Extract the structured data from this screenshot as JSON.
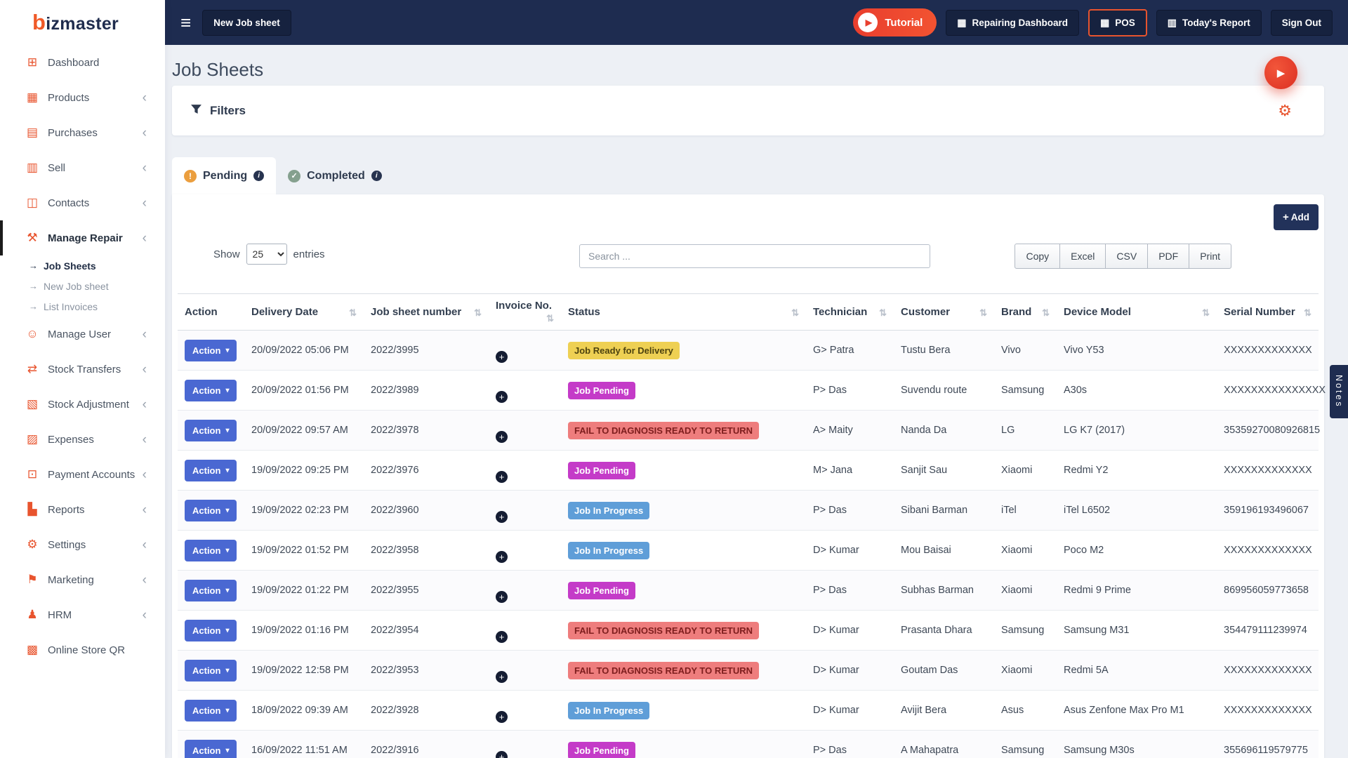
{
  "brand": {
    "name": "bizmaster",
    "accent": "#f05a28"
  },
  "topbar": {
    "hamburger_icon": "menu-icon",
    "new_job_sheet_label": "New Job sheet",
    "buttons": [
      {
        "label": "Tutorial",
        "icon": "play-icon",
        "style": "tutorial"
      },
      {
        "label": "Repairing Dashboard",
        "icon": "grid-icon",
        "style": "navy"
      },
      {
        "label": "POS",
        "icon": "grid-icon",
        "style": "navy-highlight"
      },
      {
        "label": "Today's Report",
        "icon": "report-icon",
        "style": "navy"
      },
      {
        "label": "Sign Out",
        "icon": null,
        "style": "navy"
      }
    ]
  },
  "sidebar": {
    "items": [
      {
        "label": "Dashboard",
        "icon": "dashboard-icon",
        "chevron": false
      },
      {
        "label": "Products",
        "icon": "products-icon",
        "chevron": true
      },
      {
        "label": "Purchases",
        "icon": "purchases-icon",
        "chevron": true
      },
      {
        "label": "Sell",
        "icon": "sell-icon",
        "chevron": true
      },
      {
        "label": "Contacts",
        "icon": "contacts-icon",
        "chevron": true
      },
      {
        "label": "Manage Repair",
        "icon": "repair-icon",
        "chevron": true,
        "active": true,
        "subitems": [
          {
            "label": "Job Sheets",
            "active": true
          },
          {
            "label": "New Job sheet"
          },
          {
            "label": "List Invoices"
          }
        ]
      },
      {
        "label": "Manage User",
        "icon": "users-icon",
        "chevron": true
      },
      {
        "label": "Stock Transfers",
        "icon": "transfers-icon",
        "chevron": true
      },
      {
        "label": "Stock Adjustment",
        "icon": "adjustment-icon",
        "chevron": true
      },
      {
        "label": "Expenses",
        "icon": "expenses-icon",
        "chevron": true
      },
      {
        "label": "Payment Accounts",
        "icon": "payments-icon",
        "chevron": true
      },
      {
        "label": "Reports",
        "icon": "reports-icon",
        "chevron": true
      },
      {
        "label": "Settings",
        "icon": "settings-icon",
        "chevron": true
      },
      {
        "label": "Marketing",
        "icon": "marketing-icon",
        "chevron": true
      },
      {
        "label": "HRM",
        "icon": "hrm-icon",
        "chevron": true
      },
      {
        "label": "Online Store QR",
        "icon": "qr-icon",
        "chevron": false
      }
    ]
  },
  "page": {
    "title": "Job Sheets",
    "filters": {
      "label": "Filters"
    },
    "tabs": [
      {
        "label": "Pending",
        "icon": "alert-icon",
        "active": true
      },
      {
        "label": "Completed",
        "icon": "check-icon",
        "active": false
      }
    ],
    "add_button": "Add"
  },
  "controls": {
    "show_label": "Show",
    "page_size": "25",
    "entries_label": "entries",
    "search_placeholder": "Search ...",
    "export_buttons": [
      "Copy",
      "Excel",
      "CSV",
      "PDF",
      "Print"
    ]
  },
  "table": {
    "action_label": "Action",
    "headers": [
      {
        "label": "Action",
        "sortable": false
      },
      {
        "label": "Delivery Date",
        "sortable": true
      },
      {
        "label": "Job sheet number",
        "sortable": true
      },
      {
        "label": "Invoice No.",
        "sortable": true
      },
      {
        "label": "Status",
        "sortable": true
      },
      {
        "label": "Technician",
        "sortable": true
      },
      {
        "label": "Customer",
        "sortable": true
      },
      {
        "label": "Brand",
        "sortable": true
      },
      {
        "label": "Device Model",
        "sortable": true
      },
      {
        "label": "Serial Number",
        "sortable": true
      }
    ],
    "rows": [
      {
        "delivery_date": "20/09/2022 05:06 PM",
        "job_sheet_number": "2022/3995",
        "status": "Job Ready for Delivery",
        "status_type": "ready",
        "technician": "G> Patra",
        "customer": "Tustu Bera",
        "brand": "Vivo",
        "device_model": "Vivo Y53",
        "serial_number": "XXXXXXXXXXXXX"
      },
      {
        "delivery_date": "20/09/2022 01:56 PM",
        "job_sheet_number": "2022/3989",
        "status": "Job Pending",
        "status_type": "pending",
        "technician": "P> Das",
        "customer": "Suvendu route",
        "brand": "Samsung",
        "device_model": "A30s",
        "serial_number": "XXXXXXXXXXXXXXX"
      },
      {
        "delivery_date": "20/09/2022 09:57 AM",
        "job_sheet_number": "2022/3978",
        "status": "FAIL TO DIAGNOSIS READY TO RETURN",
        "status_type": "fail",
        "technician": "A> Maity",
        "customer": "Nanda Da",
        "brand": "LG",
        "device_model": "LG K7 (2017)",
        "serial_number": "35359270080926815"
      },
      {
        "delivery_date": "19/09/2022 09:25 PM",
        "job_sheet_number": "2022/3976",
        "status": "Job Pending",
        "status_type": "pending",
        "technician": "M> Jana",
        "customer": "Sanjit Sau",
        "brand": "Xiaomi",
        "device_model": "Redmi Y2",
        "serial_number": "XXXXXXXXXXXXX"
      },
      {
        "delivery_date": "19/09/2022 02:23 PM",
        "job_sheet_number": "2022/3960",
        "status": "Job In Progress",
        "status_type": "progress",
        "technician": "P> Das",
        "customer": "Sibani Barman",
        "brand": "iTel",
        "device_model": "iTel L6502",
        "serial_number": "359196193496067"
      },
      {
        "delivery_date": "19/09/2022 01:52 PM",
        "job_sheet_number": "2022/3958",
        "status": "Job In Progress",
        "status_type": "progress",
        "technician": "D> Kumar",
        "customer": "Mou Baisai",
        "brand": "Xiaomi",
        "device_model": "Poco M2",
        "serial_number": "XXXXXXXXXXXXX"
      },
      {
        "delivery_date": "19/09/2022 01:22 PM",
        "job_sheet_number": "2022/3955",
        "status": "Job Pending",
        "status_type": "pending",
        "technician": "P> Das",
        "customer": "Subhas Barman",
        "brand": "Xiaomi",
        "device_model": "Redmi 9 Prime",
        "serial_number": "869956059773658"
      },
      {
        "delivery_date": "19/09/2022 01:16 PM",
        "job_sheet_number": "2022/3954",
        "status": "FAIL TO DIAGNOSIS READY TO RETURN",
        "status_type": "fail",
        "technician": "D> Kumar",
        "customer": "Prasanta Dhara",
        "brand": "Samsung",
        "device_model": "Samsung M31",
        "serial_number": "354479111239974"
      },
      {
        "delivery_date": "19/09/2022 12:58 PM",
        "job_sheet_number": "2022/3953",
        "status": "FAIL TO DIAGNOSIS READY TO RETURN",
        "status_type": "fail",
        "technician": "D> Kumar",
        "customer": "Goutam Das",
        "brand": "Xiaomi",
        "device_model": "Redmi 5A",
        "serial_number": "XXXXXXXXXXXXX"
      },
      {
        "delivery_date": "18/09/2022 09:39 AM",
        "job_sheet_number": "2022/3928",
        "status": "Job In Progress",
        "status_type": "progress",
        "technician": "D> Kumar",
        "customer": "Avijit Bera",
        "brand": "Asus",
        "device_model": "Asus Zenfone Max Pro M1",
        "serial_number": "XXXXXXXXXXXXX"
      },
      {
        "delivery_date": "16/09/2022 11:51 AM",
        "job_sheet_number": "2022/3916",
        "status": "Job Pending",
        "status_type": "pending",
        "technician": "P> Das",
        "customer": "A Mahapatra",
        "brand": "Samsung",
        "device_model": "Samsung M30s",
        "serial_number": "355696119579775"
      }
    ]
  },
  "status_colors": {
    "ready": {
      "bg": "#eed053",
      "fg": "#4d430f"
    },
    "pending": {
      "bg": "#c43bc8",
      "fg": "#ffffff"
    },
    "fail": {
      "bg": "#ee7d7d",
      "fg": "#7e1e1e"
    },
    "progress": {
      "bg": "#5f9ed8",
      "fg": "#ffffff"
    }
  },
  "colors": {
    "brand_accent": "#f05a28",
    "topbar_navy": "#1e2c50",
    "button_navy": "#16223f",
    "tutorial_red": "#ee3f2e",
    "action_blue": "#4a68d2"
  },
  "notes_tab": {
    "label": "Notes"
  }
}
